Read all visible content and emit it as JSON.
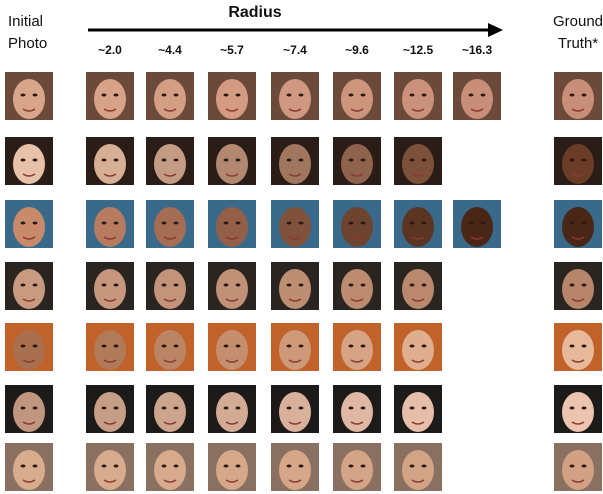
{
  "header": {
    "left": [
      "Initial",
      "Photo"
    ],
    "title": "Radius",
    "right": [
      "Ground",
      "Truth*"
    ]
  },
  "radii": [
    "~2.0",
    "~4.4",
    "~5.7",
    "~7.4",
    "~9.6",
    "~12.5",
    "~16.3"
  ]
}
